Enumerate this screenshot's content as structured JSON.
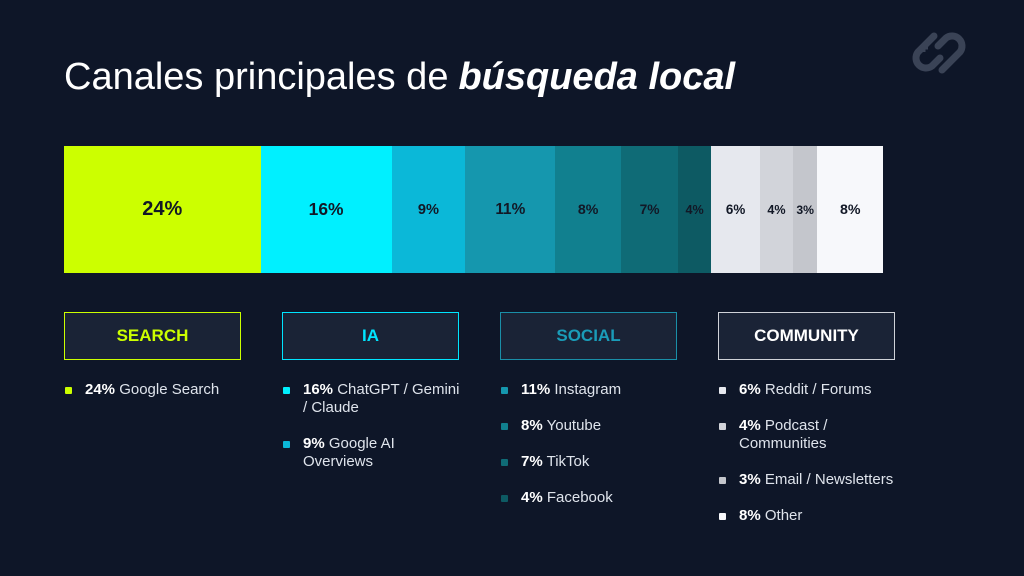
{
  "chart_data": {
    "type": "stacked_bar",
    "title": "Canales principales de",
    "title_emphasis": "búsqueda local",
    "series": [
      {
        "name": "SEARCH",
        "color": "#ccff00",
        "text_color": "#ccff00",
        "categories": [
          "Google Search"
        ],
        "values": [
          24
        ],
        "value_labels": [
          "24%"
        ],
        "colors": [
          "#ccff00"
        ]
      },
      {
        "name": "IA",
        "color": "#00e5ff",
        "text_color": "#00e5ff",
        "categories": [
          "ChatGPT / Gemini / Claude",
          "Google AI Overviews"
        ],
        "values": [
          16,
          9
        ],
        "value_labels": [
          "16%",
          "9%"
        ],
        "colors": [
          "#00f0ff",
          "#0bb8d8"
        ]
      },
      {
        "name": "SOCIAL",
        "color": "#1a8fa8",
        "text_color": "#1a9cb8",
        "categories": [
          "Instagram",
          "Youtube",
          "TikTok",
          "Facebook"
        ],
        "values": [
          11,
          8,
          7,
          4
        ],
        "value_labels": [
          "11%",
          "8%",
          "7%",
          "4%"
        ],
        "colors": [
          "#1597ae",
          "#11808f",
          "#0f6b76",
          "#0d5a63"
        ]
      },
      {
        "name": "COMMUNITY",
        "color": "#cfd2d8",
        "text_color": "#ffffff",
        "categories": [
          "Reddit / Forums",
          "Podcast / Communities",
          "Email / Newsletters",
          "Other"
        ],
        "values": [
          6,
          4,
          3,
          8
        ],
        "value_labels": [
          "6%",
          "4%",
          "3%",
          "8%"
        ],
        "colors": [
          "#e6e8ee",
          "#d2d4da",
          "#c4c6cc",
          "#f7f8fb"
        ]
      }
    ]
  }
}
